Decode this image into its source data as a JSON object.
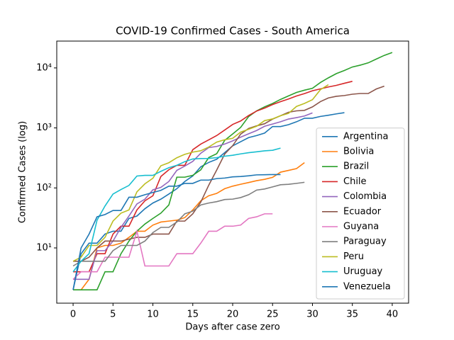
{
  "chart_data": {
    "type": "line",
    "title": "COVID-19 Confirmed Cases - South America",
    "x_label": "Days after case zero",
    "y_label": "Confirmed Cases (log)",
    "log_y": true,
    "legend": "lower right",
    "x": [
      0,
      1,
      2,
      3,
      4,
      5,
      6,
      7,
      8,
      9,
      10,
      11,
      12,
      13,
      14,
      15,
      16,
      17,
      18,
      19,
      20,
      21,
      22,
      23,
      24,
      25,
      26,
      27,
      28,
      29,
      30,
      31,
      32,
      33,
      34,
      35,
      36,
      37,
      38,
      39,
      40
    ],
    "xlim": [
      -2.05,
      42.05
    ],
    "xticks": [
      0,
      5,
      10,
      15,
      20,
      25,
      30,
      35,
      40
    ],
    "ylim": [
      1.2,
      28000
    ],
    "yticks": [
      {
        "value": 10,
        "label": "10¹"
      },
      {
        "value": 100,
        "label": "10²"
      },
      {
        "value": 1000,
        "label": "10³"
      },
      {
        "value": 10000,
        "label": "10⁴"
      }
    ],
    "series": [
      {
        "name": "Argentina",
        "color": "#1f77b4",
        "values": [
          2,
          8,
          12,
          12,
          17,
          19,
          19,
          31,
          34,
          45,
          56,
          65,
          79,
          97,
          128,
          158,
          225,
          266,
          301,
          387,
          502,
          589,
          690,
          745,
          820,
          1054,
          1054,
          1133,
          1265,
          1451,
          1451,
          1554,
          1628,
          1715,
          1795,
          null,
          null,
          null,
          null,
          null,
          null
        ]
      },
      {
        "name": "Bolivia",
        "color": "#ff7f0e",
        "values": [
          2,
          2,
          3,
          10,
          11,
          11,
          12,
          15,
          19,
          19,
          24,
          27,
          28,
          29,
          32,
          43,
          61,
          74,
          81,
          97,
          107,
          115,
          123,
          132,
          139,
          150,
          183,
          196,
          210,
          264,
          null,
          null,
          null,
          null,
          null,
          null,
          null,
          null,
          null,
          null,
          null
        ]
      },
      {
        "name": "Brazil",
        "color": "#2ca02c",
        "values": [
          2,
          2,
          2,
          2,
          4,
          4,
          8,
          13,
          19,
          25,
          31,
          38,
          52,
          151,
          151,
          162,
          200,
          321,
          372,
          621,
          793,
          1021,
          1546,
          1924,
          2247,
          2554,
          2985,
          3417,
          3904,
          4256,
          4579,
          5717,
          6836,
          8044,
          9056,
          10360,
          11130,
          12161,
          14034,
          16170,
          18092
        ]
      },
      {
        "name": "Chile",
        "color": "#d62728",
        "values": [
          4,
          4,
          4,
          8,
          8,
          17,
          23,
          23,
          43,
          61,
          74,
          155,
          201,
          238,
          238,
          434,
          537,
          632,
          746,
          922,
          1142,
          1306,
          1610,
          1909,
          2139,
          2449,
          2738,
          3031,
          3404,
          3737,
          4161,
          4471,
          4815,
          5116,
          5546,
          5972,
          null,
          null,
          null,
          null,
          null
        ]
      },
      {
        "name": "Colombia",
        "color": "#9467bd",
        "values": [
          3,
          3,
          3,
          9,
          9,
          13,
          22,
          34,
          54,
          65,
          93,
          102,
          128,
          196,
          231,
          277,
          378,
          470,
          491,
          539,
          608,
          702,
          798,
          906,
          1065,
          1161,
          1267,
          1406,
          1485,
          1579,
          1780,
          null,
          null,
          null,
          null,
          null,
          null,
          null,
          null,
          null,
          null
        ]
      },
      {
        "name": "Ecuador",
        "color": "#8c564b",
        "values": [
          6,
          6,
          7,
          10,
          13,
          13,
          13,
          14,
          15,
          15,
          17,
          17,
          17,
          28,
          28,
          37,
          58,
          111,
          199,
          367,
          506,
          789,
          981,
          1082,
          1173,
          1403,
          1595,
          1823,
          1924,
          1962,
          2240,
          2748,
          3163,
          3368,
          3465,
          3646,
          3747,
          3747,
          4450,
          4965,
          null
        ]
      },
      {
        "name": "Guyana",
        "color": "#e377c2",
        "values": [
          3,
          4,
          4,
          4,
          7,
          7,
          7,
          7,
          19,
          5,
          5,
          5,
          5,
          8,
          8,
          8,
          12,
          19,
          19,
          23,
          23,
          24,
          31,
          33,
          37,
          37,
          null,
          null,
          null,
          null,
          null,
          null,
          null,
          null,
          null,
          null,
          null,
          null,
          null,
          null,
          null
        ]
      },
      {
        "name": "Paraguay",
        "color": "#7f7f7f",
        "values": [
          5,
          6,
          6,
          6,
          6,
          9,
          11,
          11,
          11,
          13,
          18,
          22,
          22,
          27,
          37,
          41,
          52,
          56,
          59,
          64,
          65,
          69,
          77,
          92,
          96,
          104,
          113,
          115,
          119,
          124,
          null,
          null,
          null,
          null,
          null,
          null,
          null,
          null,
          null,
          null,
          null
        ]
      },
      {
        "name": "Peru",
        "color": "#bcbd22",
        "values": [
          6,
          7,
          11,
          11,
          15,
          28,
          38,
          43,
          86,
          117,
          145,
          234,
          263,
          318,
          363,
          395,
          416,
          480,
          580,
          635,
          671,
          852,
          950,
          1065,
          1323,
          1414,
          1595,
          1746,
          2281,
          2561,
          2954,
          4342,
          5256,
          null,
          null,
          null,
          null,
          null,
          null,
          null,
          null
        ]
      },
      {
        "name": "Uruguay",
        "color": "#17becf",
        "values": [
          4,
          6,
          8,
          29,
          50,
          79,
          94,
          110,
          158,
          162,
          162,
          189,
          217,
          238,
          274,
          304,
          309,
          310,
          320,
          338,
          350,
          369,
          386,
          400,
          415,
          424,
          460,
          null,
          null,
          null,
          null,
          null,
          null,
          null,
          null,
          null,
          null,
          null,
          null,
          null,
          null
        ]
      },
      {
        "name": "Venezuela",
        "color": "#1f77b4",
        "values": [
          2,
          10,
          17,
          33,
          36,
          42,
          42,
          70,
          70,
          77,
          84,
          91,
          107,
          107,
          119,
          119,
          135,
          135,
          143,
          146,
          153,
          155,
          159,
          165,
          166,
          167,
          167,
          null,
          null,
          null,
          null,
          null,
          null,
          null,
          null,
          null,
          null,
          null,
          null,
          null,
          null
        ]
      }
    ]
  }
}
